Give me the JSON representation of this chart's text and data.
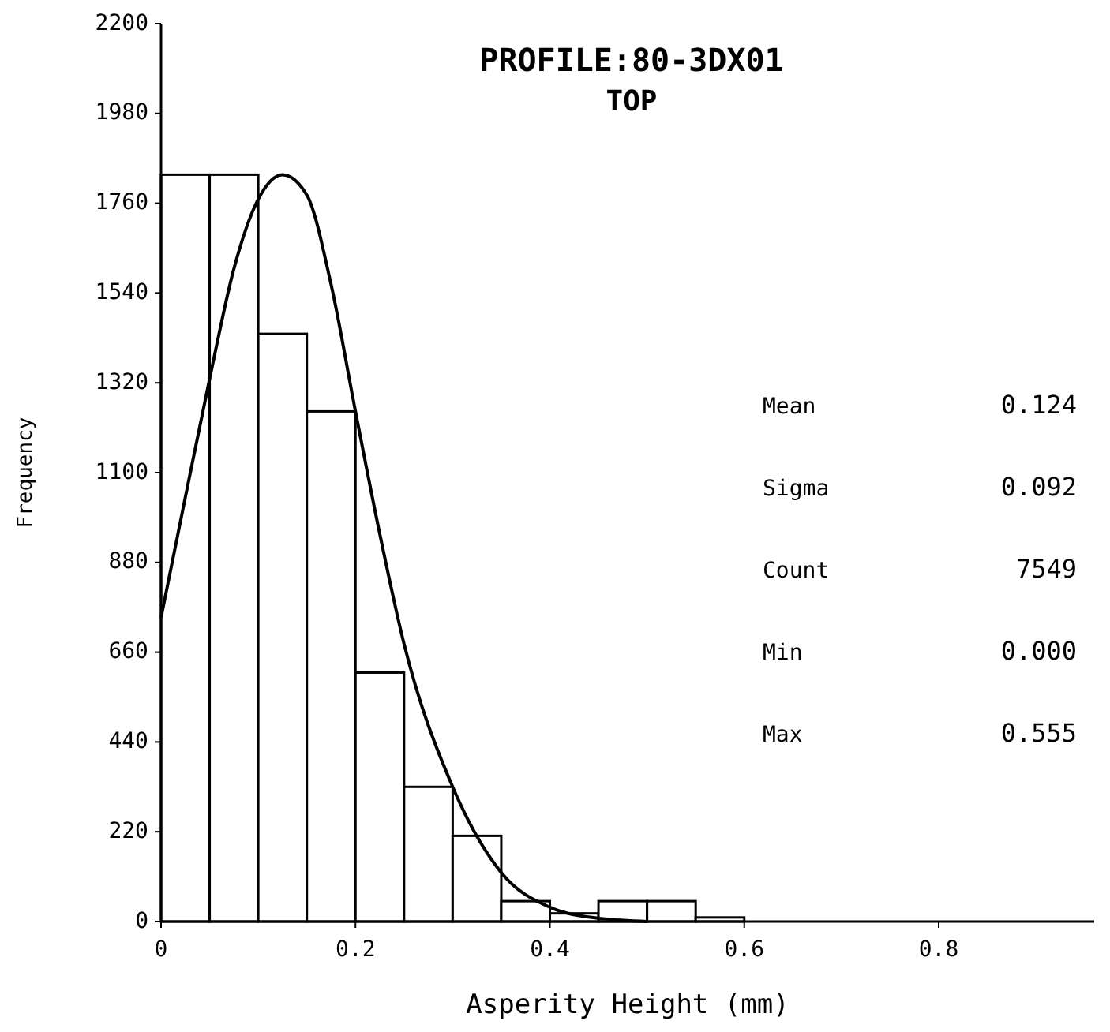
{
  "chart_data": {
    "type": "histogram",
    "title": "PROFILE:80-3DX01",
    "subtitle": "TOP",
    "xlabel": "Asperity Height (mm)",
    "ylabel": "Frequency",
    "bins": [
      0,
      0.05,
      0.1,
      0.15,
      0.2,
      0.25,
      0.3,
      0.35,
      0.4,
      0.45,
      0.5,
      0.55,
      0.6
    ],
    "series": [
      {
        "color": "#000000",
        "values": [
          1830,
          1830,
          1440,
          1250,
          610,
          330,
          210,
          50,
          20,
          50,
          50,
          10
        ]
      },
      {
        "type": "line",
        "color": "#000000",
        "x": [
          0,
          0.025,
          0.05,
          0.075,
          0.1,
          0.125,
          0.15,
          0.175,
          0.2,
          0.225,
          0.25,
          0.3,
          0.35,
          0.4,
          0.45,
          0.5
        ],
        "values": [
          745,
          1040,
          1330,
          1600,
          1770,
          1830,
          1780,
          1560,
          1250,
          950,
          680,
          330,
          120,
          35,
          8,
          0
        ]
      }
    ],
    "xlim": [
      0,
      0.96
    ],
    "xticks": [
      {
        "value": 0,
        "label": "0"
      },
      0.2,
      0.4,
      0.6,
      0.8
    ],
    "ylim": [
      0,
      2200
    ],
    "yticks": [
      0,
      220,
      440,
      660,
      880,
      1100,
      1320,
      1540,
      1760,
      1980,
      2200
    ],
    "grid": false,
    "annotations": [
      "Mean 0.124",
      "Sigma 0.092",
      "Count 7549",
      "Min 0.000",
      "Max 0.555"
    ]
  }
}
